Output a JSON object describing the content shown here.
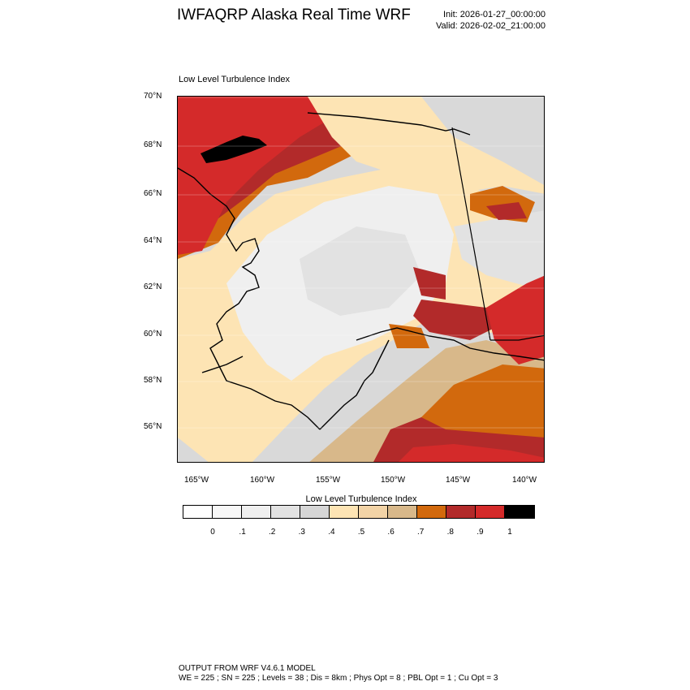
{
  "header": {
    "title": "IWFAQRP Alaska Real Time WRF",
    "init": "Init: 2026-01-27_00:00:00",
    "valid": "Valid: 2026-02-02_21:00:00"
  },
  "map": {
    "title": "Low Level Turbulence Index",
    "lat_labels": [
      "70°N",
      "68°N",
      "66°N",
      "64°N",
      "62°N",
      "60°N",
      "58°N",
      "56°N"
    ],
    "lon_labels": [
      "165°W",
      "160°W",
      "155°W",
      "150°W",
      "145°W",
      "140°W"
    ],
    "palette": {
      "land_low": "#d9d9d9",
      "land_verylow": "#efefef",
      "moderate": "#fde4b4",
      "tan": "#d8b88a",
      "orange": "#d2690d",
      "darkred": "#b22a2a",
      "red": "#d42a2a",
      "black": "#000000"
    }
  },
  "colorbar": {
    "title": "Low Level Turbulence Index",
    "colors": [
      "#ffffff",
      "#f7f7f7",
      "#efefef",
      "#e2e2e2",
      "#d6d6d6",
      "#fde4b4",
      "#f2d3a6",
      "#d8b88a",
      "#d2690d",
      "#b22a2a",
      "#d42a2a",
      "#000000"
    ],
    "labels": [
      "0",
      ".1",
      ".2",
      ".3",
      ".4",
      ".5",
      ".6",
      ".7",
      ".8",
      ".9",
      "1"
    ]
  },
  "footer": {
    "line1": "OUTPUT FROM WRF V4.6.1 MODEL",
    "line2": "WE = 225 ; SN = 225 ; Levels = 38 ; Dis = 8km ; Phys Opt = 8 ; PBL Opt = 1 ; Cu Opt = 3"
  }
}
